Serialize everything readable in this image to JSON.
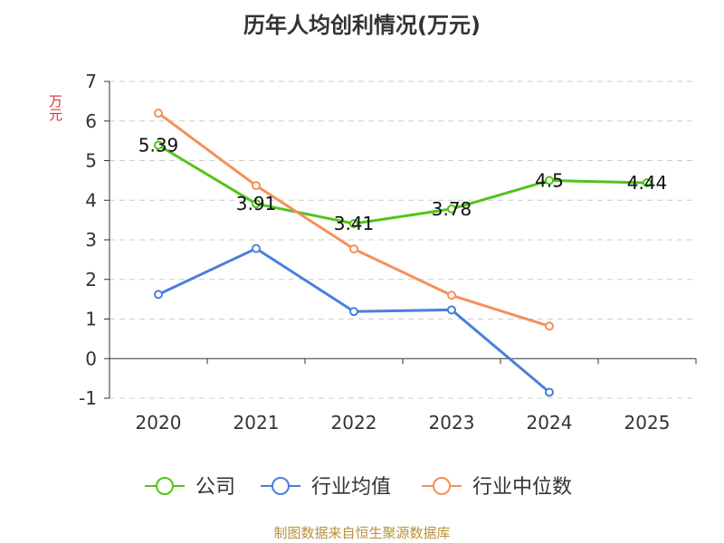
{
  "chart_data": {
    "type": "line",
    "title": "历年人均创利情况(万元)",
    "ylabel": "万元",
    "categories": [
      "2020",
      "2021",
      "2022",
      "2023",
      "2024",
      "2025"
    ],
    "ylim": [
      -1,
      7
    ],
    "yticks": [
      -1,
      0,
      1,
      2,
      3,
      4,
      5,
      6,
      7
    ],
    "grid": true,
    "legend_position": "bottom",
    "series": [
      {
        "name": "公司",
        "color": "#52c41a",
        "values": [
          5.39,
          3.91,
          3.41,
          3.78,
          4.5,
          4.44
        ],
        "labels": [
          "5.39",
          "3.91",
          "3.41",
          "3.78",
          "4.5",
          "4.44"
        ]
      },
      {
        "name": "行业均值",
        "color": "#4a7fdc",
        "values": [
          1.62,
          2.78,
          1.19,
          1.23,
          -0.85,
          null
        ]
      },
      {
        "name": "行业中位数",
        "color": "#f5905a",
        "values": [
          6.2,
          4.37,
          2.77,
          1.6,
          0.82,
          null
        ]
      }
    ]
  },
  "footer": "制图数据来自恒生聚源数据库"
}
